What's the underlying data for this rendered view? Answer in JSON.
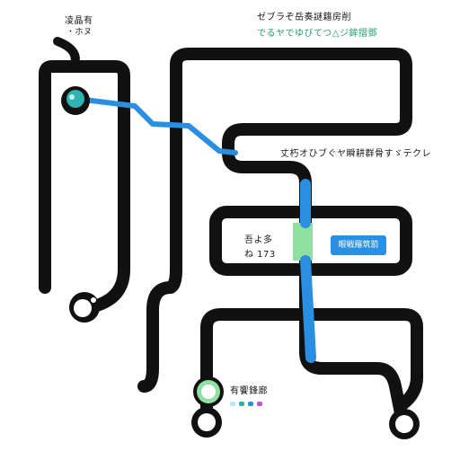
{
  "labels": {
    "top_left_title": "凌晶有",
    "top_left_sub": "・ホヌ",
    "top_right_line1": "ゼブラぞ岳奏謎籍房削",
    "top_right_line2": "でるヤでゆびてつ△ジ鉾摺鄧",
    "mid_right_label": "丈朽オひブぐヤ瞬耕群骨すゞテクレ",
    "middle_box_line1": "吾よ多",
    "middle_box_line2": "ね 173",
    "chip_text": "眼戦羅筑箭",
    "bottom_label": "有饗鋒廊"
  },
  "icons": {
    "start_node": "teal-circle-icon",
    "bottom_left_node": "blob-node-icon",
    "green_node": "green-ring-icon",
    "bottom_nodes": "ring-icon"
  },
  "colors": {
    "track": "#111111",
    "highlight_blue": "#2a8fe0",
    "highlight_green": "#8fe0a0",
    "label_green": "#1f9e6a",
    "dot_colors": [
      "#b6e3f5",
      "#26b5a8",
      "#2a8fe0",
      "#c84fd8"
    ]
  }
}
